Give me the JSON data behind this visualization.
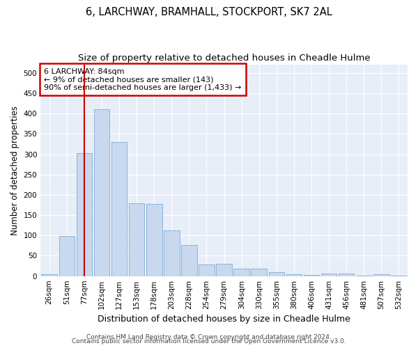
{
  "title1": "6, LARCHWAY, BRAMHALL, STOCKPORT, SK7 2AL",
  "title2": "Size of property relative to detached houses in Cheadle Hulme",
  "xlabel": "Distribution of detached houses by size in Cheadle Hulme",
  "ylabel": "Number of detached properties",
  "bar_labels": [
    "26sqm",
    "51sqm",
    "77sqm",
    "102sqm",
    "127sqm",
    "153sqm",
    "178sqm",
    "203sqm",
    "228sqm",
    "254sqm",
    "279sqm",
    "304sqm",
    "330sqm",
    "355sqm",
    "380sqm",
    "406sqm",
    "431sqm",
    "456sqm",
    "481sqm",
    "507sqm",
    "532sqm"
  ],
  "bar_values": [
    5,
    99,
    302,
    411,
    330,
    179,
    178,
    113,
    76,
    29,
    30,
    18,
    18,
    9,
    5,
    3,
    7,
    7,
    1,
    4,
    2
  ],
  "bar_color": "#c8d8ee",
  "bar_edgecolor": "#8ab4d8",
  "vline_x": 2,
  "vline_color": "#cc0000",
  "annotation_box_text": "6 LARCHWAY: 84sqm\n← 9% of detached houses are smaller (143)\n90% of semi-detached houses are larger (1,433) →",
  "box_edgecolor": "#cc0000",
  "ylim": [
    0,
    520
  ],
  "yticks": [
    0,
    50,
    100,
    150,
    200,
    250,
    300,
    350,
    400,
    450,
    500
  ],
  "footnote1": "Contains HM Land Registry data © Crown copyright and database right 2024.",
  "footnote2": "Contains public sector information licensed under the Open Government Licence v3.0.",
  "bg_color": "#ffffff",
  "plot_bg_color": "#e8eef8",
  "grid_color": "#ffffff",
  "title1_fontsize": 10.5,
  "title2_fontsize": 9.5,
  "xlabel_fontsize": 9,
  "ylabel_fontsize": 8.5,
  "tick_fontsize": 7.5,
  "annot_fontsize": 8,
  "footnote_fontsize": 6.5
}
